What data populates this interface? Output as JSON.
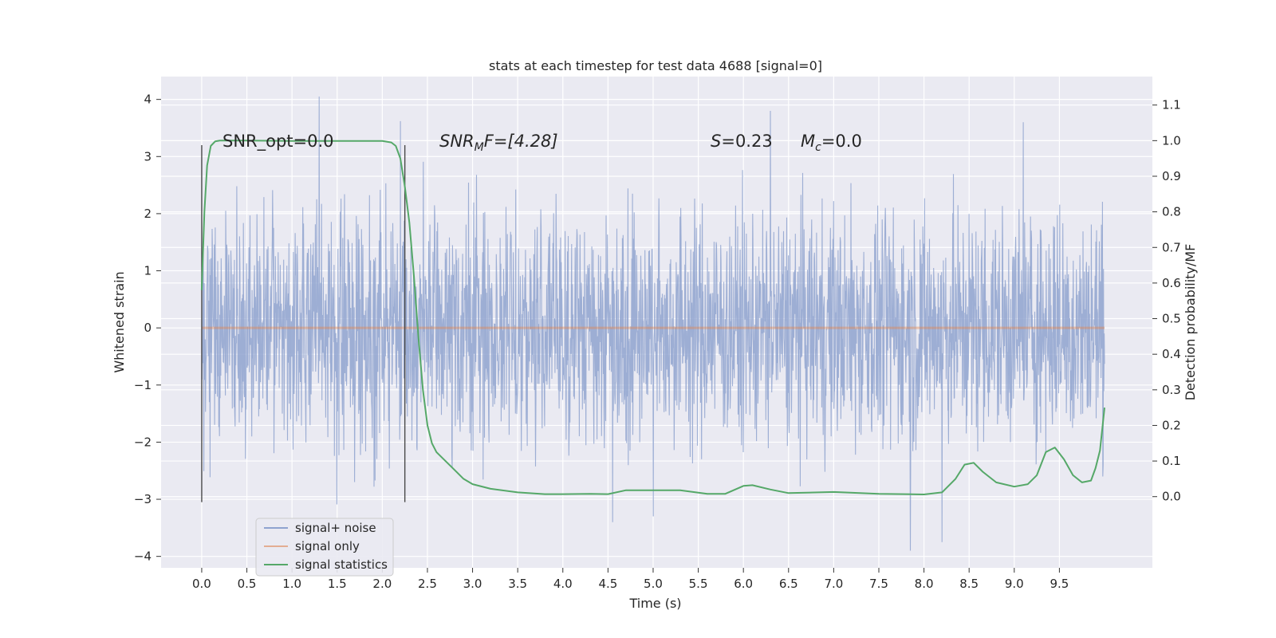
{
  "chart_data": {
    "type": "line",
    "title": "stats at each timestep for test data 4688 [signal=0]",
    "xlabel": "Time (s)",
    "ylabel": "Whitened strain",
    "y2label": "Detection probability/MF",
    "xlim": [
      -0.45,
      10.53
    ],
    "ylim": [
      -4.2,
      4.4
    ],
    "y2lim": [
      -0.2,
      1.18
    ],
    "x_ticks": [
      "0.0",
      "0.5",
      "1.0",
      "1.5",
      "2.0",
      "2.5",
      "3.0",
      "3.5",
      "4.0",
      "4.5",
      "5.0",
      "5.5",
      "6.0",
      "6.5",
      "7.0",
      "7.5",
      "8.0",
      "8.5",
      "9.0",
      "9.5"
    ],
    "y_ticks": [
      "4",
      "3",
      "2",
      "1",
      "0",
      "−1",
      "−2",
      "−3",
      "−4"
    ],
    "y2_ticks": [
      "1.1",
      "1.0",
      "0.9",
      "0.8",
      "0.7",
      "0.6",
      "0.5",
      "0.4",
      "0.3",
      "0.2",
      "0.1",
      "0.0"
    ],
    "grid": true,
    "legend_placement": "lower-left",
    "annotations": {
      "snr_opt": "SNR_opt=0.0",
      "snr_mf_main": "SNR",
      "snr_mf_sub": "M",
      "snr_mf_rest": "F=[4.28]",
      "s_var": "S",
      "s_val": "=0.23",
      "mc_var": "M",
      "mc_sub": "c",
      "mc_val": "=0.0"
    },
    "vertical_markers": [
      {
        "x": 0.0,
        "ymin": -3.05,
        "ymax": 3.2
      },
      {
        "x": 2.25,
        "ymin": -3.05,
        "ymax": 3.2
      }
    ],
    "series": [
      {
        "name": "signal+ noise",
        "color": "#8fa3cf",
        "style": "noise",
        "x_range": [
          0.0,
          10.0
        ],
        "typical_envelope": [
          -2.2,
          2.3
        ],
        "peaks": [
          [
            1.3,
            4.05
          ],
          [
            2.2,
            3.62
          ],
          [
            6.3,
            3.8
          ],
          [
            9.1,
            3.6
          ],
          [
            7.85,
            -3.9
          ],
          [
            8.2,
            -3.75
          ],
          [
            4.55,
            -3.4
          ],
          [
            5.0,
            -3.3
          ]
        ]
      },
      {
        "name": "signal only",
        "color": "#dd8452",
        "x": [
          0.0,
          10.0
        ],
        "y": [
          0.0,
          0.0
        ]
      },
      {
        "name": "signal statistics",
        "color": "#55a868",
        "axis": "right",
        "x": [
          0.0,
          0.03,
          0.06,
          0.1,
          0.15,
          0.2,
          0.3,
          0.5,
          1.0,
          1.5,
          2.0,
          2.1,
          2.15,
          2.2,
          2.25,
          2.3,
          2.35,
          2.4,
          2.45,
          2.5,
          2.55,
          2.6,
          2.7,
          2.8,
          2.9,
          3.0,
          3.2,
          3.5,
          3.8,
          4.0,
          4.3,
          4.5,
          4.7,
          5.0,
          5.3,
          5.6,
          5.8,
          6.0,
          6.1,
          6.3,
          6.5,
          7.0,
          7.5,
          8.0,
          8.2,
          8.35,
          8.45,
          8.55,
          8.65,
          8.8,
          9.0,
          9.15,
          9.25,
          9.35,
          9.45,
          9.55,
          9.65,
          9.75,
          9.85,
          9.9,
          9.95,
          10.0
        ],
        "y": [
          0.58,
          0.8,
          0.93,
          0.985,
          0.998,
          1.0,
          1.0,
          1.0,
          0.999,
          0.999,
          0.999,
          0.995,
          0.985,
          0.95,
          0.87,
          0.77,
          0.62,
          0.45,
          0.3,
          0.2,
          0.15,
          0.125,
          0.1,
          0.075,
          0.05,
          0.035,
          0.022,
          0.012,
          0.007,
          0.007,
          0.008,
          0.007,
          0.018,
          0.018,
          0.018,
          0.008,
          0.008,
          0.03,
          0.032,
          0.02,
          0.01,
          0.013,
          0.008,
          0.006,
          0.012,
          0.05,
          0.09,
          0.095,
          0.07,
          0.04,
          0.028,
          0.035,
          0.06,
          0.125,
          0.138,
          0.105,
          0.06,
          0.04,
          0.045,
          0.08,
          0.13,
          0.25
        ]
      }
    ]
  }
}
